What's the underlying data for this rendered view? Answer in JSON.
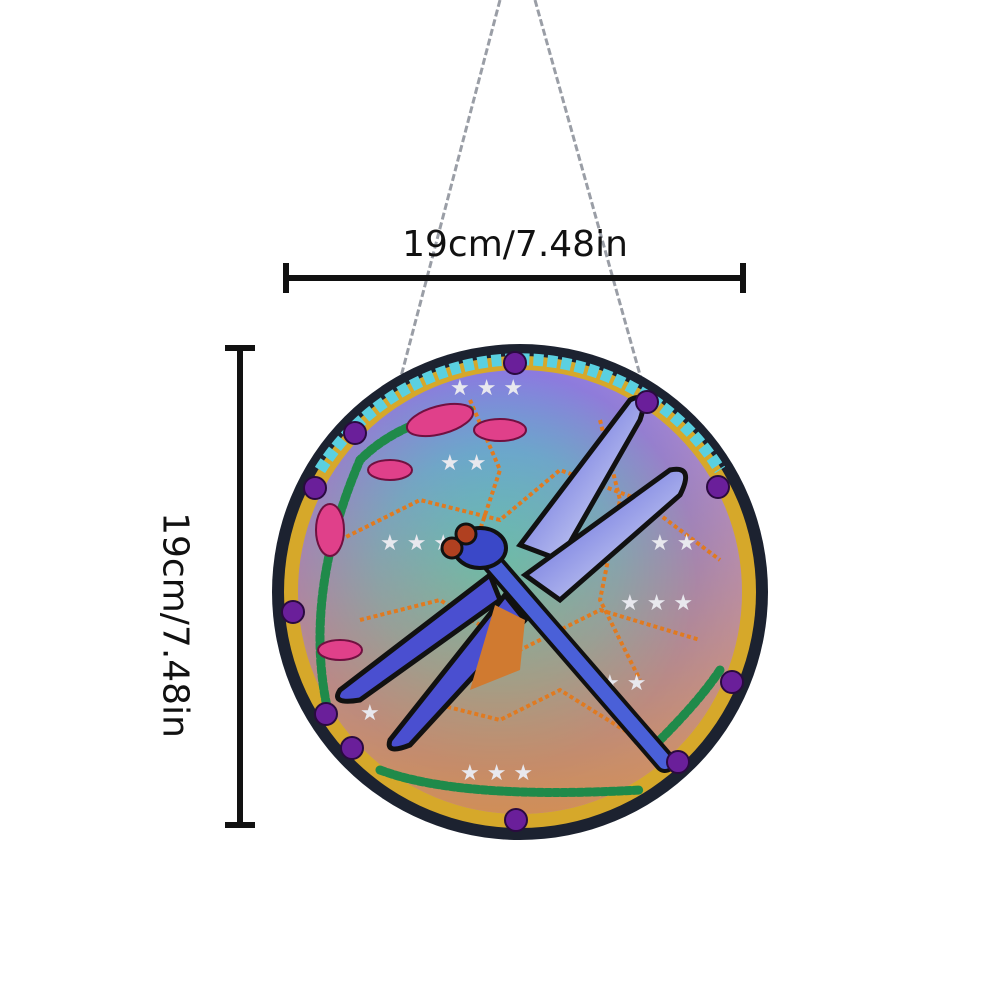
{
  "product": {
    "width_label": "19cm/7.48in",
    "height_label": "19cm/7.48in"
  },
  "colors": {
    "frame": "#1c2230",
    "gem": "#6a1f9a",
    "dragonfly_wing_blue": "#4a4fd0",
    "background_top": "#7b6be0",
    "background_mid": "#3fc3d8",
    "background_bottom": "#d79a4a"
  },
  "icons": [
    "chain",
    "dimension-arrow-horizontal",
    "dimension-arrow-vertical",
    "dragonfly",
    "star",
    "gem"
  ]
}
